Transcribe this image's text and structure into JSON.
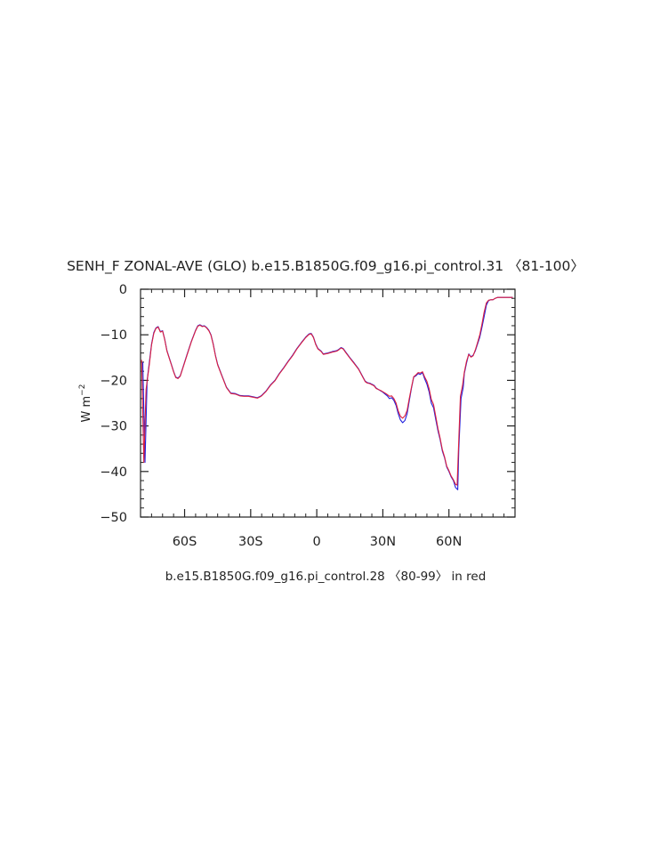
{
  "chart_data": {
    "type": "line",
    "title": "SENH_F ZONAL-AVE (GLO) b.e15.B1850G.f09_g16.pi_control.31 〈81-100〉",
    "ylabel": "W m",
    "ylabel_sup": "−2",
    "caption": "b.e15.B1850G.f09_g16.pi_control.28 〈80-99〉 in red",
    "xlim": [
      -80,
      90
    ],
    "ylim": [
      -50,
      0
    ],
    "x_ticks": [
      {
        "value": -60,
        "label": "60S"
      },
      {
        "value": -30,
        "label": "30S"
      },
      {
        "value": 0,
        "label": "0"
      },
      {
        "value": 30,
        "label": "30N"
      },
      {
        "value": 60,
        "label": "60N"
      }
    ],
    "y_ticks": [
      {
        "value": 0,
        "label": "0"
      },
      {
        "value": -10,
        "label": "−10"
      },
      {
        "value": -20,
        "label": "−20"
      },
      {
        "value": -30,
        "label": "−30"
      },
      {
        "value": -40,
        "label": "−40"
      },
      {
        "value": -50,
        "label": "−50"
      }
    ],
    "grid": false,
    "series": [
      {
        "color": "#1f1fdd",
        "points": [
          [
            -79,
            -16
          ],
          [
            -78,
            -38
          ],
          [
            -77,
            -20
          ],
          [
            -76,
            -16
          ],
          [
            -75,
            -12
          ],
          [
            -74,
            -9.5
          ],
          [
            -73,
            -8.5
          ],
          [
            -72,
            -8.2
          ],
          [
            -71,
            -9.3
          ],
          [
            -70,
            -9.1
          ],
          [
            -69,
            -11
          ],
          [
            -68,
            -13.5
          ],
          [
            -67,
            -15
          ],
          [
            -66,
            -16.5
          ],
          [
            -65,
            -18
          ],
          [
            -64,
            -19.3
          ],
          [
            -63,
            -19.5
          ],
          [
            -62,
            -19
          ],
          [
            -61,
            -17.5
          ],
          [
            -59,
            -14.5
          ],
          [
            -57,
            -11.5
          ],
          [
            -55,
            -9
          ],
          [
            -54,
            -8
          ],
          [
            -53,
            -7.8
          ],
          [
            -52,
            -8.1
          ],
          [
            -51,
            -8
          ],
          [
            -50,
            -8.4
          ],
          [
            -49,
            -9
          ],
          [
            -48,
            -10
          ],
          [
            -47,
            -12
          ],
          [
            -46,
            -14.5
          ],
          [
            -45,
            -16.5
          ],
          [
            -43,
            -19
          ],
          [
            -41,
            -21.5
          ],
          [
            -39,
            -22.8
          ],
          [
            -37,
            -22.9
          ],
          [
            -35,
            -23.3
          ],
          [
            -33,
            -23.4
          ],
          [
            -31,
            -23.4
          ],
          [
            -29,
            -23.6
          ],
          [
            -27,
            -23.8
          ],
          [
            -26,
            -23.6
          ],
          [
            -25,
            -23.3
          ],
          [
            -23,
            -22.3
          ],
          [
            -21,
            -21
          ],
          [
            -19,
            -20
          ],
          [
            -17,
            -18.5
          ],
          [
            -15,
            -17.2
          ],
          [
            -13,
            -15.8
          ],
          [
            -11,
            -14.5
          ],
          [
            -9,
            -13
          ],
          [
            -7,
            -11.7
          ],
          [
            -5,
            -10.5
          ],
          [
            -3.5,
            -9.8
          ],
          [
            -2.5,
            -9.7
          ],
          [
            -1.5,
            -10.5
          ],
          [
            -0.5,
            -12
          ],
          [
            0.5,
            -13
          ],
          [
            2,
            -13.6
          ],
          [
            3,
            -14.2
          ],
          [
            5,
            -14
          ],
          [
            7,
            -13.7
          ],
          [
            9,
            -13.5
          ],
          [
            10,
            -13.2
          ],
          [
            11,
            -12.8
          ],
          [
            12,
            -13
          ],
          [
            13,
            -13.7
          ],
          [
            15,
            -15
          ],
          [
            17,
            -16.2
          ],
          [
            19,
            -17.5
          ],
          [
            21,
            -19.3
          ],
          [
            22,
            -20.2
          ],
          [
            23,
            -20.5
          ],
          [
            24,
            -20.6
          ],
          [
            26,
            -21.1
          ],
          [
            27,
            -21.7
          ],
          [
            29,
            -22.3
          ],
          [
            30,
            -22.6
          ],
          [
            31,
            -23
          ],
          [
            32,
            -23.4
          ],
          [
            33,
            -24
          ],
          [
            34,
            -23.8
          ],
          [
            35,
            -24.4
          ],
          [
            36,
            -25.5
          ],
          [
            37,
            -27.3
          ],
          [
            38,
            -28.7
          ],
          [
            39,
            -29.3
          ],
          [
            40,
            -28.8
          ],
          [
            41,
            -27.3
          ],
          [
            42,
            -24.5
          ],
          [
            43,
            -21.7
          ],
          [
            44,
            -19.3
          ],
          [
            45,
            -19
          ],
          [
            46,
            -18.5
          ],
          [
            47,
            -18.7
          ],
          [
            48,
            -18.3
          ],
          [
            49,
            -19.7
          ],
          [
            50,
            -20.8
          ],
          [
            51,
            -22.5
          ],
          [
            52,
            -25
          ],
          [
            53,
            -26
          ],
          [
            54,
            -28.5
          ],
          [
            55,
            -31
          ],
          [
            56,
            -33
          ],
          [
            57,
            -35.5
          ],
          [
            58,
            -37
          ],
          [
            59,
            -39
          ],
          [
            60,
            -40
          ],
          [
            61,
            -41.2
          ],
          [
            62,
            -42
          ],
          [
            63,
            -43.5
          ],
          [
            64,
            -44
          ],
          [
            64.5,
            -35
          ],
          [
            65.5,
            -24
          ],
          [
            66.5,
            -21.5
          ],
          [
            67,
            -18.5
          ],
          [
            68,
            -16.2
          ],
          [
            69,
            -14.2
          ],
          [
            70,
            -14.8
          ],
          [
            71,
            -14.5
          ],
          [
            72,
            -13.5
          ],
          [
            73,
            -12
          ],
          [
            74,
            -10.5
          ],
          [
            75,
            -8.3
          ],
          [
            76,
            -6
          ],
          [
            77,
            -3.5
          ],
          [
            78,
            -2.5
          ],
          [
            79,
            -2.3
          ],
          [
            80,
            -2.3
          ],
          [
            81,
            -2
          ],
          [
            82,
            -1.8
          ],
          [
            84,
            -1.8
          ],
          [
            86,
            -1.8
          ],
          [
            88,
            -1.8
          ],
          [
            89,
            -1.8
          ]
        ]
      },
      {
        "color": "#dd1f3f",
        "points": [
          [
            -79.5,
            -15.5
          ],
          [
            -78.5,
            -38
          ],
          [
            -77.5,
            -22
          ],
          [
            -76,
            -16.5
          ],
          [
            -75,
            -12.2
          ],
          [
            -74,
            -9.7
          ],
          [
            -73,
            -8.6
          ],
          [
            -72,
            -8.3
          ],
          [
            -71,
            -9.4
          ],
          [
            -70,
            -9.2
          ],
          [
            -69,
            -11.1
          ],
          [
            -68,
            -13.6
          ],
          [
            -67,
            -15.1
          ],
          [
            -66,
            -16.6
          ],
          [
            -65,
            -18.1
          ],
          [
            -64,
            -19.4
          ],
          [
            -63,
            -19.6
          ],
          [
            -62,
            -19.1
          ],
          [
            -61,
            -17.6
          ],
          [
            -59,
            -14.6
          ],
          [
            -57,
            -11.6
          ],
          [
            -55,
            -9.1
          ],
          [
            -54,
            -8.1
          ],
          [
            -53,
            -7.9
          ],
          [
            -52,
            -8.2
          ],
          [
            -51,
            -8.1
          ],
          [
            -50,
            -8.5
          ],
          [
            -49,
            -9.1
          ],
          [
            -48,
            -10.1
          ],
          [
            -47,
            -12.1
          ],
          [
            -46,
            -14.6
          ],
          [
            -45,
            -16.6
          ],
          [
            -43,
            -19.1
          ],
          [
            -41,
            -21.6
          ],
          [
            -39,
            -22.9
          ],
          [
            -37,
            -23
          ],
          [
            -35,
            -23.4
          ],
          [
            -33,
            -23.5
          ],
          [
            -31,
            -23.5
          ],
          [
            -29,
            -23.7
          ],
          [
            -27,
            -23.9
          ],
          [
            -26,
            -23.7
          ],
          [
            -25,
            -23.4
          ],
          [
            -23,
            -22.4
          ],
          [
            -21,
            -21.1
          ],
          [
            -19,
            -20.1
          ],
          [
            -17,
            -18.6
          ],
          [
            -15,
            -17.3
          ],
          [
            -13,
            -15.9
          ],
          [
            -11,
            -14.6
          ],
          [
            -9,
            -13.1
          ],
          [
            -7,
            -11.8
          ],
          [
            -5,
            -10.6
          ],
          [
            -3.5,
            -9.9
          ],
          [
            -2.5,
            -9.8
          ],
          [
            -1.5,
            -10.6
          ],
          [
            -0.5,
            -12.1
          ],
          [
            0.5,
            -13.1
          ],
          [
            2,
            -13.7
          ],
          [
            3,
            -14.3
          ],
          [
            5,
            -14.1
          ],
          [
            7,
            -13.8
          ],
          [
            9,
            -13.6
          ],
          [
            10,
            -13.3
          ],
          [
            11,
            -12.9
          ],
          [
            12,
            -13.1
          ],
          [
            13,
            -13.8
          ],
          [
            15,
            -15.1
          ],
          [
            17,
            -16.3
          ],
          [
            19,
            -17.6
          ],
          [
            21,
            -19.4
          ],
          [
            22,
            -20.3
          ],
          [
            23,
            -20.6
          ],
          [
            24,
            -20.7
          ],
          [
            26,
            -21.2
          ],
          [
            27,
            -21.8
          ],
          [
            29,
            -22.2
          ],
          [
            30,
            -22.5
          ],
          [
            31,
            -22.8
          ],
          [
            32,
            -23.1
          ],
          [
            33,
            -23.5
          ],
          [
            34,
            -23.4
          ],
          [
            35,
            -24
          ],
          [
            36,
            -25
          ],
          [
            37,
            -26.7
          ],
          [
            38,
            -27.9
          ],
          [
            39,
            -28.3
          ],
          [
            40,
            -27.8
          ],
          [
            41,
            -26.6
          ],
          [
            42,
            -24
          ],
          [
            43,
            -21.5
          ],
          [
            44,
            -19.2
          ],
          [
            45,
            -18.8
          ],
          [
            46,
            -18.3
          ],
          [
            47,
            -18.4
          ],
          [
            48,
            -18.1
          ],
          [
            49,
            -19.3
          ],
          [
            50,
            -20.2
          ],
          [
            51,
            -21.8
          ],
          [
            52,
            -24.2
          ],
          [
            53,
            -25.3
          ],
          [
            54,
            -27.8
          ],
          [
            55,
            -30.5
          ],
          [
            56,
            -32.7
          ],
          [
            57,
            -35.2
          ],
          [
            58,
            -36.8
          ],
          [
            59,
            -38.8
          ],
          [
            60,
            -39.8
          ],
          [
            61,
            -41
          ],
          [
            62,
            -41.8
          ],
          [
            63,
            -42.8
          ],
          [
            63.7,
            -43
          ],
          [
            64.3,
            -35
          ],
          [
            65.2,
            -23.5
          ],
          [
            66.2,
            -21
          ],
          [
            67,
            -18.2
          ],
          [
            68,
            -15.8
          ],
          [
            69,
            -14.3
          ],
          [
            70,
            -14.9
          ],
          [
            71,
            -14.6
          ],
          [
            72,
            -13.3
          ],
          [
            73,
            -11.7
          ],
          [
            74,
            -10
          ],
          [
            75,
            -7.6
          ],
          [
            76,
            -5
          ],
          [
            77,
            -3
          ],
          [
            78,
            -2.4
          ],
          [
            79,
            -2.3
          ],
          [
            80,
            -2.3
          ],
          [
            81,
            -2
          ],
          [
            82,
            -1.8
          ],
          [
            84,
            -1.8
          ],
          [
            86,
            -1.8
          ],
          [
            88,
            -1.8
          ],
          [
            89,
            -1.8
          ]
        ]
      }
    ]
  }
}
